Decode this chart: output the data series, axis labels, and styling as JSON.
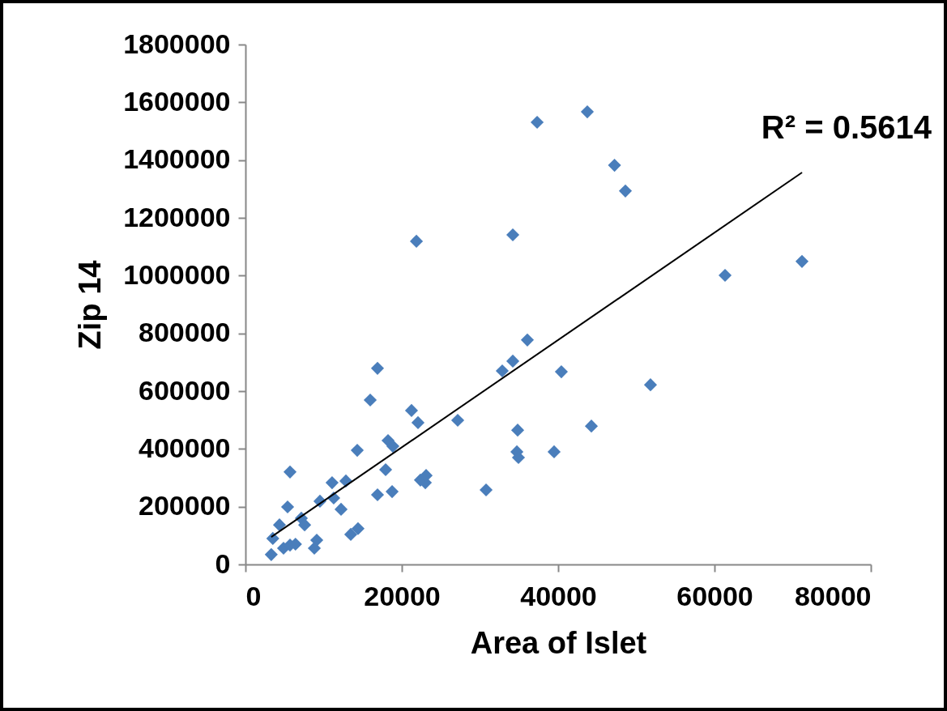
{
  "chart_data": {
    "type": "scatter",
    "xlabel": "Area of Islet",
    "ylabel": "Zip 14",
    "marker": "diamond",
    "xlim": [
      0,
      80000
    ],
    "xticks": [
      0,
      20000,
      40000,
      60000,
      80000
    ],
    "ylim": [
      0,
      1800000
    ],
    "yticks": [
      0,
      200000,
      400000,
      600000,
      800000,
      1000000,
      1200000,
      1400000,
      1600000,
      1800000
    ],
    "annotations": [
      "R² = 0.5614"
    ],
    "series": [
      {
        "color": "#4a7ebb",
        "x": [
          3300,
          3500,
          4350,
          4870,
          5700,
          5390,
          5700,
          6400,
          7150,
          7570,
          8810,
          9120,
          9530,
          11080,
          11290,
          12230,
          12850,
          13470,
          14400,
          14300,
          15960,
          16890,
          16890,
          17930,
          18240,
          18760,
          18860,
          21240,
          22070,
          21870,
          22380,
          23010,
          23110,
          27150,
          30780,
          32850,
          34200,
          34200,
          34720,
          34820,
          34920,
          36060,
          39480,
          40410,
          37310,
          43730,
          47210,
          48600,
          44250,
          51810,
          61350,
          71190
        ],
        "values": [
          34000,
          90000,
          137000,
          56000,
          67000,
          199000,
          320000,
          70000,
          160000,
          137000,
          56000,
          84000,
          219000,
          283000,
          230000,
          191000,
          289000,
          104000,
          124000,
          395000,
          569000,
          241000,
          679000,
          328000,
          429000,
          252000,
          409000,
          533000,
          491000,
          1119000,
          292000,
          283000,
          308000,
          499000,
          258000,
          670000,
          704000,
          1141000,
          390000,
          465000,
          370000,
          777000,
          390000,
          667000,
          1531000,
          1567000,
          1382000,
          1293000,
          479000,
          622000,
          1001000,
          1049000
        ]
      },
      {
        "type": "line",
        "color": "#000000",
        "marker": "none",
        "x": [
          3300,
          71200
        ],
        "values": [
          95000,
          1357000
        ]
      }
    ]
  }
}
